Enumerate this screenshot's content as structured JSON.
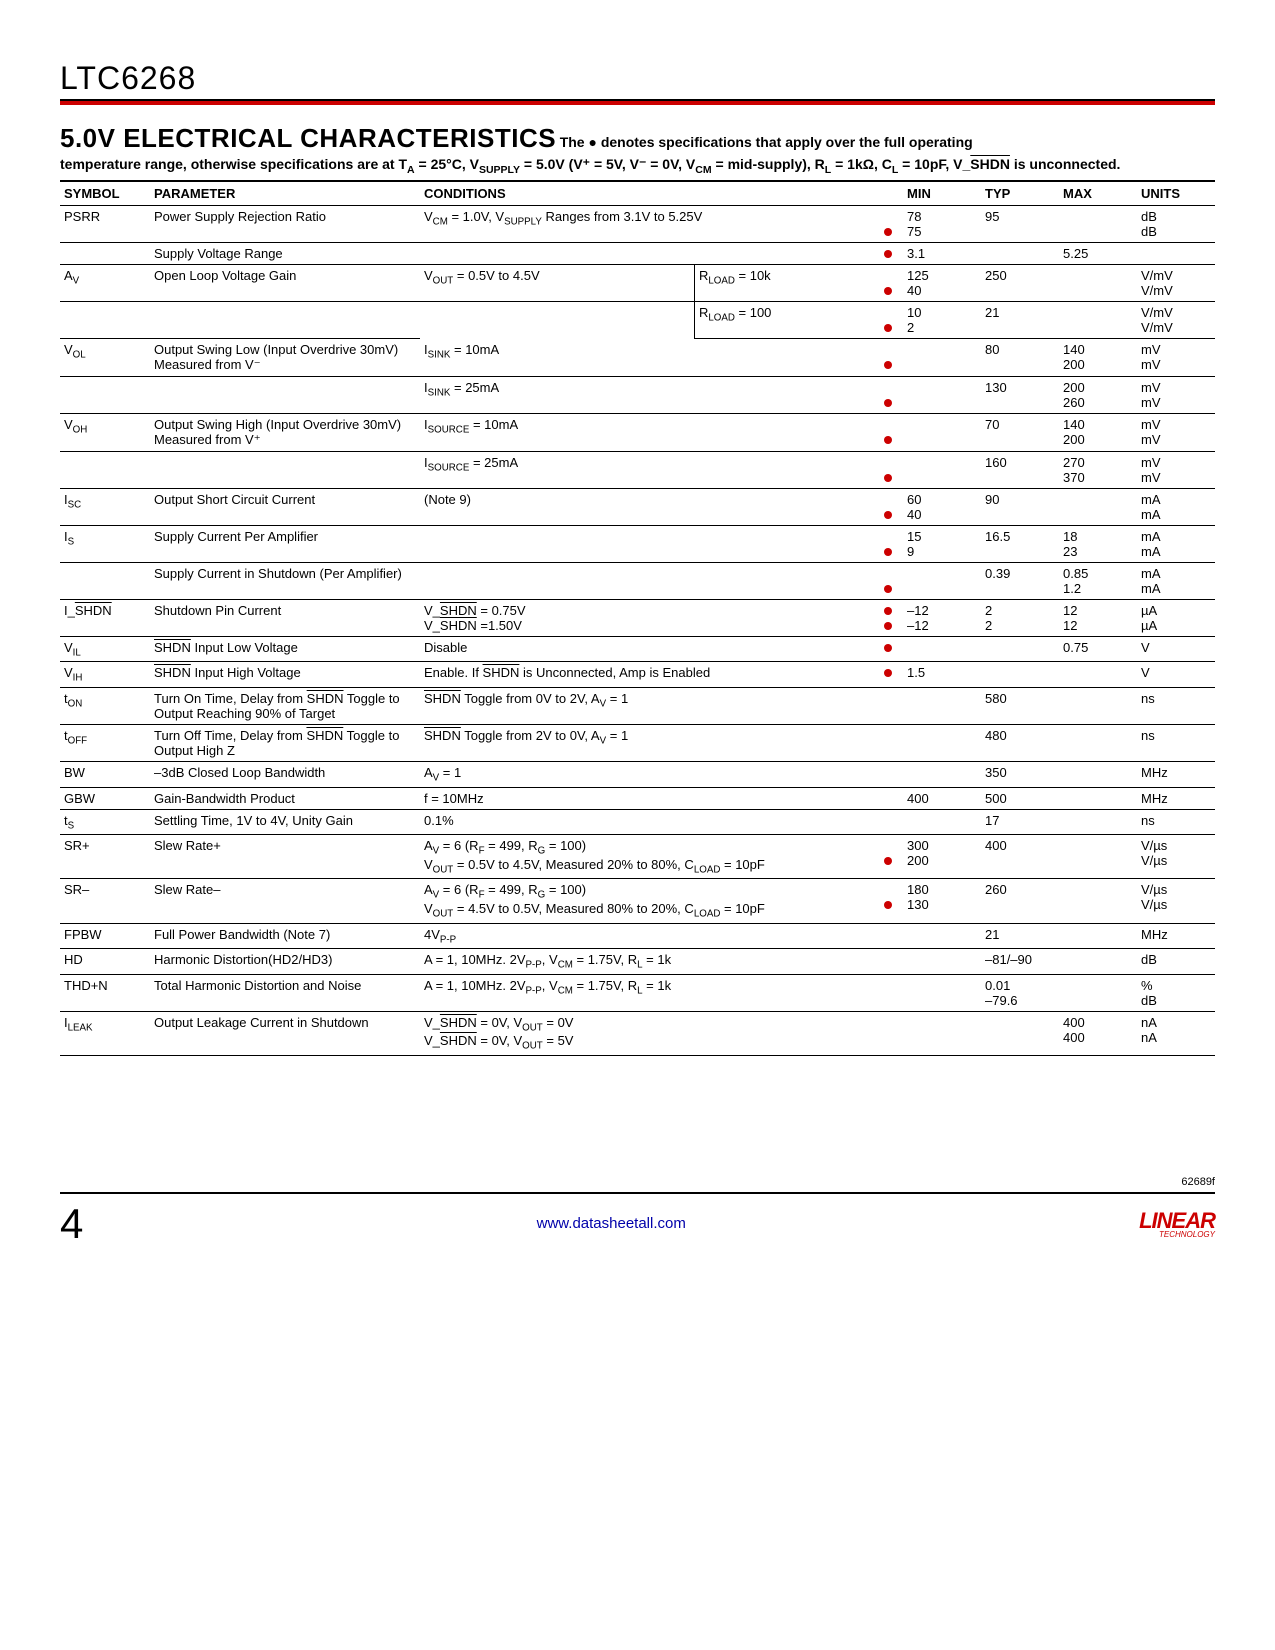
{
  "header": {
    "part": "LTC6268"
  },
  "section": {
    "title": "5.0V ELECTRICAL CHARACTERISTICS",
    "intro1": " The ● denotes specifications that apply over the full operating",
    "intro2": "temperature range, otherwise specifications are at T_A = 25°C, V_SUPPLY = 5.0V (V⁺ = 5V, V⁻ = 0V, V_CM = mid-supply), R_L = 1kΩ, C_L = 10pF, V_SHDN(bar) is unconnected."
  },
  "table": {
    "headers": {
      "symbol": "SYMBOL",
      "parameter": "PARAMETER",
      "conditions": "CONDITIONS",
      "min": "MIN",
      "typ": "TYP",
      "max": "MAX",
      "units": "UNITS"
    },
    "rows": [
      {
        "sym": "PSRR",
        "param": "Power Supply Rejection Ratio",
        "cond": "V_CM = 1.0V, V_SUPPLY Ranges from 3.1V to 5.25V",
        "dot": [
          false,
          true
        ],
        "min": [
          "78",
          "75"
        ],
        "typ": [
          "95",
          ""
        ],
        "max": [
          "",
          ""
        ],
        "units": [
          "dB",
          "dB"
        ]
      },
      {
        "sym": "",
        "param": "Supply Voltage Range",
        "cond": "",
        "dot": [
          true
        ],
        "min": [
          "3.1"
        ],
        "typ": [
          ""
        ],
        "max": [
          "5.25"
        ],
        "units": [
          ""
        ]
      },
      {
        "sym": "A_V",
        "param": "Open Loop Voltage Gain",
        "cond": "V_OUT = 0.5V to 4.5V",
        "cond2": "R_LOAD = 10k",
        "dot": [
          false,
          true
        ],
        "min": [
          "125",
          "40"
        ],
        "typ": [
          "250",
          ""
        ],
        "max": [
          "",
          ""
        ],
        "units": [
          "V/mV",
          "V/mV"
        ],
        "sub": true
      },
      {
        "sym": "",
        "param": "",
        "cond": "",
        "cond2": "R_LOAD = 100",
        "dot": [
          false,
          true
        ],
        "min": [
          "10",
          "2"
        ],
        "typ": [
          "21",
          ""
        ],
        "max": [
          "",
          ""
        ],
        "units": [
          "V/mV",
          "V/mV"
        ],
        "subcont": true
      },
      {
        "sym": "V_OL",
        "param": "Output Swing Low (Input Overdrive 30mV) Measured from V⁻",
        "cond": "I_SINK = 10mA",
        "dot": [
          false,
          true
        ],
        "min": [
          "",
          ""
        ],
        "typ": [
          "80",
          ""
        ],
        "max": [
          "140",
          "200"
        ],
        "units": [
          "mV",
          "mV"
        ]
      },
      {
        "sym": "",
        "param": "",
        "cond": "I_SINK = 25mA",
        "dot": [
          false,
          true
        ],
        "min": [
          "",
          ""
        ],
        "typ": [
          "130",
          ""
        ],
        "max": [
          "200",
          "260"
        ],
        "units": [
          "mV",
          "mV"
        ]
      },
      {
        "sym": "V_OH",
        "param": "Output Swing High (Input Overdrive 30mV) Measured from V⁺",
        "cond": "I_SOURCE = 10mA",
        "dot": [
          false,
          true
        ],
        "min": [
          "",
          ""
        ],
        "typ": [
          "70",
          ""
        ],
        "max": [
          "140",
          "200"
        ],
        "units": [
          "mV",
          "mV"
        ]
      },
      {
        "sym": "",
        "param": "",
        "cond": "I_SOURCE = 25mA",
        "dot": [
          false,
          true
        ],
        "min": [
          "",
          ""
        ],
        "typ": [
          "160",
          ""
        ],
        "max": [
          "270",
          "370"
        ],
        "units": [
          "mV",
          "mV"
        ]
      },
      {
        "sym": "I_SC",
        "param": "Output Short Circuit Current",
        "cond": "(Note 9)",
        "dot": [
          false,
          true
        ],
        "min": [
          "60",
          "40"
        ],
        "typ": [
          "90",
          ""
        ],
        "max": [
          "",
          ""
        ],
        "units": [
          "mA",
          "mA"
        ]
      },
      {
        "sym": "I_S",
        "param": "Supply Current Per Amplifier",
        "cond": "",
        "dot": [
          false,
          true
        ],
        "min": [
          "15",
          "9"
        ],
        "typ": [
          "16.5",
          ""
        ],
        "max": [
          "18",
          "23"
        ],
        "units": [
          "mA",
          "mA"
        ]
      },
      {
        "sym": "",
        "param": "Supply Current in Shutdown (Per Amplifier)",
        "cond": "",
        "dot": [
          false,
          true
        ],
        "min": [
          "",
          ""
        ],
        "typ": [
          "0.39",
          ""
        ],
        "max": [
          "0.85",
          "1.2"
        ],
        "units": [
          "mA",
          "mA"
        ]
      },
      {
        "sym": "I_SHDN(bar)",
        "param": "Shutdown Pin Current",
        "cond": "V_SHDN(bar) = 0.75V\nV_SHDN(bar) =1.50V",
        "dot": [
          true,
          true
        ],
        "min": [
          "–12",
          "–12"
        ],
        "typ": [
          "2",
          "2"
        ],
        "max": [
          "12",
          "12"
        ],
        "units": [
          "µA",
          "µA"
        ]
      },
      {
        "sym": "V_IL",
        "param": "SHDN(bar) Input Low Voltage",
        "cond": "Disable",
        "dot": [
          true
        ],
        "min": [
          ""
        ],
        "typ": [
          ""
        ],
        "max": [
          "0.75"
        ],
        "units": [
          "V"
        ]
      },
      {
        "sym": "V_IH",
        "param": "SHDN(bar) Input High Voltage",
        "cond": "Enable. If SHDN(bar) is Unconnected, Amp is Enabled",
        "dot": [
          true
        ],
        "min": [
          "1.5"
        ],
        "typ": [
          ""
        ],
        "max": [
          ""
        ],
        "units": [
          "V"
        ]
      },
      {
        "sym": "t_ON",
        "param": "Turn On Time, Delay from SHDN(bar) Toggle to Output Reaching 90% of Target",
        "cond": "SHDN(bar) Toggle from 0V to 2V, A_V = 1",
        "dot": [
          false
        ],
        "min": [
          ""
        ],
        "typ": [
          "580"
        ],
        "max": [
          ""
        ],
        "units": [
          "ns"
        ]
      },
      {
        "sym": "t_OFF",
        "param": "Turn Off Time, Delay from SHDN(bar) Toggle to Output High Z",
        "cond": "SHDN(bar) Toggle from 2V to 0V, A_V = 1",
        "dot": [
          false
        ],
        "min": [
          ""
        ],
        "typ": [
          "480"
        ],
        "max": [
          ""
        ],
        "units": [
          "ns"
        ]
      },
      {
        "sym": "BW",
        "param": "–3dB Closed Loop Bandwidth",
        "cond": "A_V = 1",
        "dot": [
          false
        ],
        "min": [
          ""
        ],
        "typ": [
          "350"
        ],
        "max": [
          ""
        ],
        "units": [
          "MHz"
        ]
      },
      {
        "sym": "GBW",
        "param": "Gain-Bandwidth Product",
        "cond": "f = 10MHz",
        "dot": [
          false
        ],
        "min": [
          "400"
        ],
        "typ": [
          "500"
        ],
        "max": [
          ""
        ],
        "units": [
          "MHz"
        ]
      },
      {
        "sym": "t_S",
        "param": "Settling Time, 1V to 4V, Unity Gain",
        "cond": "0.1%",
        "dot": [
          false
        ],
        "min": [
          ""
        ],
        "typ": [
          "17"
        ],
        "max": [
          ""
        ],
        "units": [
          "ns"
        ]
      },
      {
        "sym": "SR+",
        "param": "Slew Rate+",
        "cond": "A_V = 6 (R_F = 499, R_G = 100)\nV_OUT = 0.5V to 4.5V, Measured 20% to 80%, C_LOAD = 10pF",
        "dot": [
          false,
          true
        ],
        "min": [
          "300",
          "200"
        ],
        "typ": [
          "400",
          ""
        ],
        "max": [
          "",
          ""
        ],
        "units": [
          "V/µs",
          "V/µs"
        ]
      },
      {
        "sym": "SR–",
        "param": "Slew Rate–",
        "cond": "A_V = 6 (R_F = 499, R_G = 100)\nV_OUT = 4.5V to 0.5V, Measured 80% to 20%, C_LOAD = 10pF",
        "dot": [
          false,
          true
        ],
        "min": [
          "180",
          "130"
        ],
        "typ": [
          "260",
          ""
        ],
        "max": [
          "",
          ""
        ],
        "units": [
          "V/µs",
          "V/µs"
        ]
      },
      {
        "sym": "FPBW",
        "param": "Full Power Bandwidth (Note 7)",
        "cond": "4V_P-P",
        "dot": [
          false
        ],
        "min": [
          ""
        ],
        "typ": [
          "21"
        ],
        "max": [
          ""
        ],
        "units": [
          "MHz"
        ]
      },
      {
        "sym": "HD",
        "param": "Harmonic Distortion(HD2/HD3)",
        "cond": "A = 1, 10MHz. 2V_P-P, V_CM = 1.75V, R_L = 1k",
        "dot": [
          false
        ],
        "min": [
          ""
        ],
        "typ": [
          "–81/–90"
        ],
        "max": [
          ""
        ],
        "units": [
          "dB"
        ]
      },
      {
        "sym": "THD+N",
        "param": "Total Harmonic Distortion and Noise",
        "cond": "A = 1, 10MHz. 2V_P-P, V_CM = 1.75V, R_L = 1k",
        "dot": [
          false,
          false
        ],
        "min": [
          "",
          ""
        ],
        "typ": [
          "0.01",
          "–79.6"
        ],
        "max": [
          "",
          ""
        ],
        "units": [
          "%",
          "dB"
        ]
      },
      {
        "sym": "I_LEAK",
        "param": "Output Leakage Current in Shutdown",
        "cond": "V_SHDN(bar) = 0V, V_OUT = 0V\nV_SHDN(bar) = 0V, V_OUT = 5V",
        "dot": [
          false,
          false
        ],
        "min": [
          "",
          ""
        ],
        "typ": [
          "",
          ""
        ],
        "max": [
          "400",
          "400"
        ],
        "units": [
          "nA",
          "nA"
        ]
      }
    ]
  },
  "footer": {
    "doc": "62689f",
    "page": "4",
    "link": "www.datasheetall.com",
    "logo_main": "LINEAR",
    "logo_sub": "TECHNOLOGY"
  },
  "colors": {
    "accent": "#c00",
    "link": "#0000aa"
  }
}
